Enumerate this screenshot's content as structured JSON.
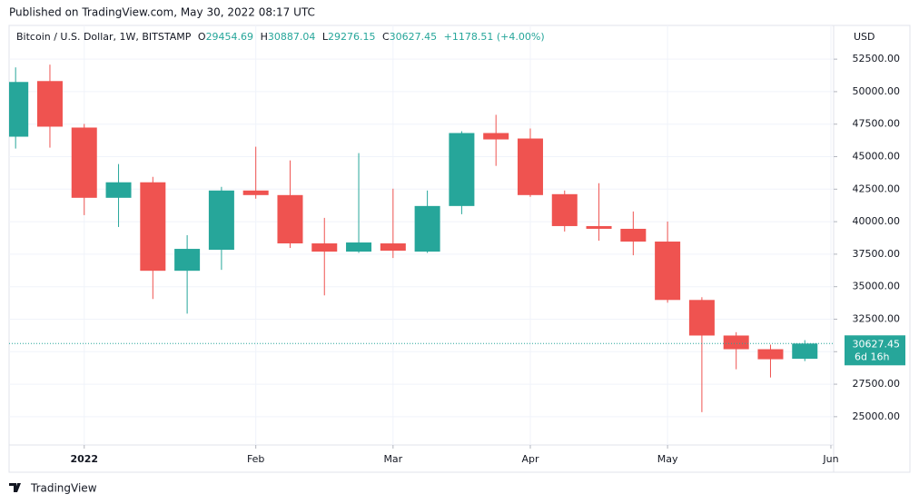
{
  "header": {
    "published": "Published on TradingView.com, May 30, 2022 08:17 UTC",
    "brand": "TradingView"
  },
  "chart_data": {
    "type": "candlestick",
    "title": "Bitcoin / U.S. Dollar, 1W, BITSTAMP",
    "ohlc_letters": [
      "O",
      "H",
      "L",
      "C"
    ],
    "change": "+1178.51 (+4.00%)",
    "currency": "USD",
    "countdown": "6d 16h",
    "up_color": "#26a69a",
    "down_color": "#ef5350",
    "open": [
      46536,
      50815,
      47238,
      41836,
      43029,
      36224,
      37838,
      42397,
      42046,
      38329,
      37697,
      38329,
      37697,
      41205,
      46817,
      46396,
      42116,
      39661,
      39451,
      38469,
      33979,
      31243,
      30191,
      29454.69
    ],
    "high": [
      51867,
      52078,
      47518,
      44432,
      43450,
      38960,
      42678,
      45764,
      44712,
      40293,
      45273,
      42537,
      42397,
      46957,
      48220,
      47167,
      42397,
      42958,
      40784,
      40012,
      34190,
      31500,
      30542,
      30887.04
    ],
    "low": [
      45624,
      45694,
      40503,
      39591,
      34049,
      32927,
      36294,
      41766,
      37978,
      34330,
      37600,
      37206,
      37600,
      40573,
      44291,
      41906,
      39240,
      38539,
      37416,
      33769,
      25351,
      28648,
      28016,
      29276.15
    ],
    "close": [
      50745,
      47308,
      41836,
      43029,
      36224,
      37908,
      42397,
      42046,
      38329,
      37697,
      38399,
      37767,
      41205,
      46817,
      46326,
      42046,
      39661,
      39451,
      38469,
      33979,
      31243,
      30191,
      29419,
      30627.45
    ],
    "xlim": [
      -0.19,
      23.84
    ],
    "xticks": [
      {
        "value": 2,
        "label": "2022"
      },
      {
        "value": 7,
        "label": "Feb"
      },
      {
        "value": 11,
        "label": "Mar"
      },
      {
        "value": 15,
        "label": "Apr"
      },
      {
        "value": 19,
        "label": "May"
      },
      {
        "value": 23.76,
        "label": "Jun"
      }
    ],
    "ylim": [
      22825,
      55094
    ],
    "yticks": [
      {
        "value": 25000,
        "label": "25000.00"
      },
      {
        "value": 27500,
        "label": "27500.00"
      },
      {
        "value": 30000,
        "label": "30000.00"
      },
      {
        "value": 32500,
        "label": "32500.00"
      },
      {
        "value": 35000,
        "label": "35000.00"
      },
      {
        "value": 37500,
        "label": "37500.00"
      },
      {
        "value": 40000,
        "label": "40000.00"
      },
      {
        "value": 42500,
        "label": "42500.00"
      },
      {
        "value": 45000,
        "label": "45000.00"
      },
      {
        "value": 47500,
        "label": "47500.00"
      },
      {
        "value": 50000,
        "label": "50000.00"
      },
      {
        "value": 52500,
        "label": "52500.00"
      }
    ],
    "grid": true
  }
}
